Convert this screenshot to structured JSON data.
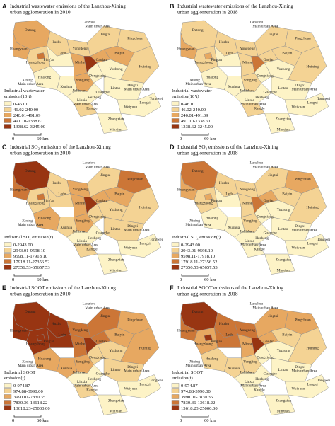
{
  "region_labels": [
    "Datong",
    "Huangyuan",
    "Huzhu",
    "Lanzhou",
    "Main urban Area",
    "Jingtai",
    "Pingchuan",
    "Yongdeng",
    "Baiyin",
    "Huangzhong",
    "Ping'an",
    "Ledu",
    "Xining",
    "Minhe",
    "Hualong",
    "Yongjing",
    "Gaolan",
    "Yuzhong",
    "Huining",
    "Jishishan",
    "Dongxiang",
    "Linxia",
    "Hezheng",
    "Kangle",
    "Guanghe",
    "Lintao",
    "Dingxi",
    "Weiyuan",
    "Longxi",
    "Tongwei",
    "Zhangxian",
    "Minxian",
    "Xunhua"
  ],
  "scale_bar": {
    "start": "0",
    "end": "60 km"
  },
  "panels": [
    {
      "letter": "A",
      "title_lines": [
        "Industrial wastewater emissions of the Lanzhou-Xining",
        "urban agglomeration in 2010"
      ],
      "legend_title_lines": [
        "Industrial wastewater",
        "emission(10⁴t)"
      ],
      "legend_items": [
        "0-46.01",
        "46.02-240.00",
        "240.01-491.09",
        "491.10-1338.61",
        "1338.62-3245.00"
      ]
    },
    {
      "letter": "B",
      "title_lines": [
        "Industrial wastewater emissions of the Lanzhou-Xining",
        "urban agglomeration in 2018"
      ],
      "legend_title_lines": [
        "Industrial wastewater",
        "emission(10⁴t)"
      ],
      "legend_items": [
        "0-46.01",
        "46.02-240.00",
        "240.01-491.09",
        "491.10-1338.61",
        "1338.62-3245.00"
      ]
    },
    {
      "letter": "C",
      "title_lines": [
        "Industrial SO₂ emissions of the Lanzhou-Xining",
        "urban agglomeration in 2010"
      ],
      "legend_title_lines": [
        "Industrial SO₂ emission(t)"
      ],
      "legend_items": [
        "0-2943.00",
        "2943.01-9598.10",
        "9598.11-17918.10",
        "17918.11-27356.52",
        "27356.53-65657.53"
      ]
    },
    {
      "letter": "D",
      "title_lines": [
        "Industrial SO₂ emissions of the Lanzhou-Xining",
        "urban agglomeration in 2018"
      ],
      "legend_title_lines": [
        "Industrial SO₂ emission(t)"
      ],
      "legend_items": [
        "0-2943.00",
        "2943.01-9598.10",
        "9598.11-17918.10",
        "17918.11-27356.52",
        "27356.53-65657.53"
      ]
    },
    {
      "letter": "E",
      "title_lines": [
        "Industrial SOOT emissions of the Lanzhou-Xining",
        "urban agglomeration in 2010"
      ],
      "legend_title_lines": [
        "Industrial SOOT",
        "emission(t)"
      ],
      "legend_items": [
        "0-974.87",
        "974.88-3990.00",
        "3990.01-7830.35",
        "7830.36-13618.22",
        "13618.23-25000.00"
      ]
    },
    {
      "letter": "F",
      "title_lines": [
        "Industrial SOOT emissions of the Lanzhou-Xining",
        "urban agglomeration in 2018"
      ],
      "legend_title_lines": [
        "Industrial SOOT",
        "emission(t)"
      ],
      "legend_items": [
        "0-974.87",
        "974.88-3990.00",
        "3990.01-7830.35",
        "7830.36-13618.22",
        "13618.23-25000.00"
      ]
    }
  ]
}
